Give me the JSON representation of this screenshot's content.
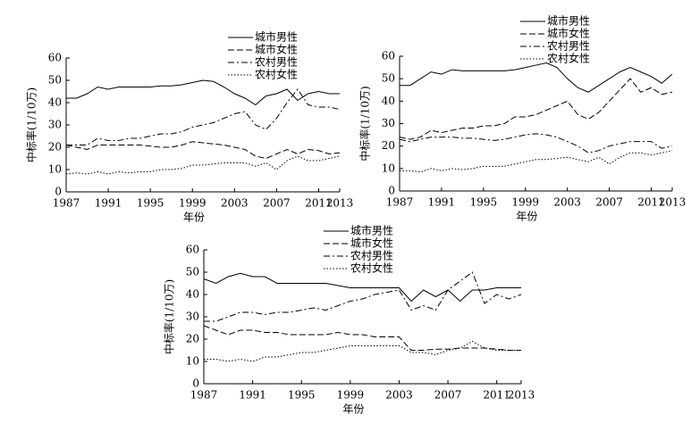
{
  "chart_data": [
    {
      "type": "line",
      "xlabel": "年份",
      "ylabel": "中标率(1/10万)",
      "x": [
        1987,
        1988,
        1989,
        1990,
        1991,
        1992,
        1993,
        1994,
        1995,
        1996,
        1997,
        1998,
        1999,
        2000,
        2001,
        2002,
        2003,
        2004,
        2005,
        2006,
        2007,
        2008,
        2009,
        2010,
        2011,
        2012,
        2013
      ],
      "xlim": [
        1987,
        2013
      ],
      "xticks": [
        1987,
        1991,
        1995,
        1999,
        2003,
        2007,
        2011,
        2013
      ],
      "ylim": [
        0,
        60
      ],
      "yticks": [
        0,
        10,
        20,
        30,
        40,
        50,
        60
      ],
      "series": [
        {
          "name": "城市男性",
          "color": "#000000",
          "linestyle": "solid",
          "values": [
            42,
            42,
            44,
            47,
            46,
            47,
            47,
            47,
            47,
            47.5,
            47.5,
            48,
            49,
            50,
            49.5,
            47,
            44,
            42,
            39,
            43,
            44,
            46,
            41,
            44,
            45,
            44,
            44
          ]
        },
        {
          "name": "城市女性",
          "color": "#000000",
          "linestyle": "dashed",
          "values": [
            21,
            20,
            19,
            21,
            21,
            21,
            21,
            21,
            20.5,
            20,
            20,
            21,
            22.5,
            22,
            21.5,
            21,
            20,
            19,
            16,
            15,
            17,
            19,
            17,
            19,
            18.5,
            17,
            17.5
          ]
        },
        {
          "name": "农村男性",
          "color": "#000000",
          "linestyle": "dashdot",
          "values": [
            21,
            21,
            21,
            24,
            23,
            23,
            24,
            24,
            25,
            26,
            26,
            27,
            29,
            30,
            31,
            33,
            35,
            36,
            30,
            28,
            33,
            40,
            46,
            39,
            38,
            38,
            37
          ]
        },
        {
          "name": "农村女性",
          "color": "#000000",
          "linestyle": "dotted",
          "values": [
            8,
            8.5,
            8,
            9,
            8,
            9,
            8.5,
            9,
            9,
            10,
            10,
            10.5,
            12,
            12,
            12.5,
            13,
            13,
            13,
            11.5,
            13,
            10,
            14,
            16,
            14,
            14,
            15,
            16
          ]
        }
      ]
    },
    {
      "type": "line",
      "xlabel": "年份",
      "ylabel": "中标率(1/10万)",
      "x": [
        1987,
        1988,
        1989,
        1990,
        1991,
        1992,
        1993,
        1994,
        1995,
        1996,
        1997,
        1998,
        1999,
        2000,
        2001,
        2002,
        2003,
        2004,
        2005,
        2006,
        2007,
        2008,
        2009,
        2010,
        2011,
        2012,
        2013
      ],
      "xlim": [
        1987,
        2013
      ],
      "xticks": [
        1987,
        1991,
        1995,
        1999,
        2003,
        2007,
        2011,
        2013
      ],
      "ylim": [
        0,
        60
      ],
      "yticks": [
        0,
        10,
        20,
        30,
        40,
        50,
        60
      ],
      "series": [
        {
          "name": "城市男性",
          "color": "#000000",
          "linestyle": "solid",
          "values": [
            47,
            47,
            50,
            53,
            52,
            54,
            53.5,
            53.5,
            53.5,
            53.5,
            53.5,
            54,
            55,
            56,
            57,
            55,
            50,
            46,
            44,
            47,
            50,
            53,
            55,
            53,
            51,
            48,
            52
          ]
        },
        {
          "name": "城市女性",
          "color": "#000000",
          "linestyle": "dashed",
          "values": [
            24,
            23,
            24,
            27,
            26,
            27,
            28,
            28,
            29,
            29,
            30,
            33,
            33,
            34,
            36,
            38,
            40,
            34,
            32,
            35,
            40,
            45,
            50,
            44,
            46,
            43,
            44
          ]
        },
        {
          "name": "农村男性",
          "color": "#000000",
          "linestyle": "dashdot",
          "values": [
            23,
            22,
            23,
            24,
            24,
            24,
            23.5,
            23.5,
            23,
            22.5,
            23,
            24,
            25,
            25.5,
            25,
            24,
            22,
            20,
            17,
            18,
            20,
            21,
            22,
            22,
            22,
            19,
            20
          ]
        },
        {
          "name": "农村女性",
          "color": "#000000",
          "linestyle": "dotted",
          "values": [
            9,
            9,
            8.5,
            10,
            9,
            10,
            9.5,
            10,
            11,
            11,
            11,
            12,
            13,
            14,
            14,
            14.5,
            15,
            14,
            13,
            15,
            12,
            15,
            17,
            17,
            16,
            17,
            18
          ]
        }
      ]
    },
    {
      "type": "line",
      "xlabel": "年份",
      "ylabel": "中标率(1/10万)",
      "x": [
        1987,
        1988,
        1989,
        1990,
        1991,
        1992,
        1993,
        1994,
        1995,
        1996,
        1997,
        1998,
        1999,
        2000,
        2001,
        2002,
        2003,
        2004,
        2005,
        2006,
        2007,
        2008,
        2009,
        2010,
        2011,
        2012,
        2013
      ],
      "xlim": [
        1987,
        2013
      ],
      "xticks": [
        1987,
        1991,
        1995,
        1999,
        2003,
        2007,
        2011,
        2013
      ],
      "ylim": [
        0,
        60
      ],
      "yticks": [
        0,
        10,
        20,
        30,
        40,
        50,
        60
      ],
      "series": [
        {
          "name": "城市男性",
          "color": "#000000",
          "linestyle": "solid",
          "values": [
            47,
            45,
            48,
            49.5,
            48,
            48,
            45,
            45,
            45,
            45,
            45,
            44,
            43,
            43,
            43,
            43,
            43,
            37,
            42,
            39,
            42,
            37,
            42,
            42,
            43,
            43,
            43
          ]
        },
        {
          "name": "城市女性",
          "color": "#000000",
          "linestyle": "dashed",
          "values": [
            26,
            24,
            22,
            24,
            24,
            23,
            23,
            22,
            22,
            22,
            22,
            23,
            22,
            22,
            21,
            21,
            21,
            15,
            15,
            15.5,
            15.5,
            16,
            16,
            16,
            15.5,
            15,
            15
          ]
        },
        {
          "name": "农村男性",
          "color": "#000000",
          "linestyle": "dashdot",
          "values": [
            28,
            28,
            30,
            32,
            32,
            31,
            32,
            32,
            33,
            34,
            33,
            35,
            37,
            38,
            40,
            41,
            42,
            33,
            35,
            33,
            42,
            46,
            50,
            36,
            40,
            38,
            40
          ]
        },
        {
          "name": "农村女性",
          "color": "#000000",
          "linestyle": "dotted",
          "values": [
            11,
            11,
            10,
            11,
            10,
            12,
            12,
            13,
            14,
            14,
            15,
            16,
            17,
            17,
            17,
            17,
            17,
            14,
            14,
            13,
            15,
            16,
            19,
            16,
            15,
            15,
            15
          ]
        }
      ]
    }
  ]
}
